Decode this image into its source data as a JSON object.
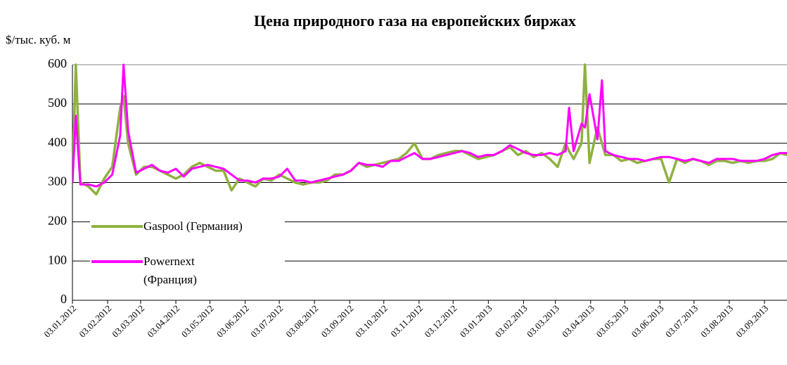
{
  "chart_data": {
    "type": "line",
    "title": "Цена природного газа на европейских биржах",
    "y_label": "$/тыс. куб. м",
    "x": [
      "03.01.2012",
      "06.01.2012",
      "10.01.2012",
      "17.01.2012",
      "24.01.2012",
      "31.01.2012",
      "07.02.2012",
      "14.02.2012",
      "17.02.2012",
      "21.02.2012",
      "28.02.2012",
      "06.03.2012",
      "13.03.2012",
      "20.03.2012",
      "27.03.2012",
      "03.04.2012",
      "10.04.2012",
      "17.04.2012",
      "24.04.2012",
      "01.05.2012",
      "08.05.2012",
      "15.05.2012",
      "22.05.2012",
      "29.05.2012",
      "05.06.2012",
      "12.06.2012",
      "19.06.2012",
      "26.06.2012",
      "03.07.2012",
      "10.07.2012",
      "17.07.2012",
      "24.07.2012",
      "31.07.2012",
      "07.08.2012",
      "14.08.2012",
      "21.08.2012",
      "28.08.2012",
      "04.09.2012",
      "11.09.2012",
      "18.09.2012",
      "25.09.2012",
      "02.10.2012",
      "09.10.2012",
      "16.10.2012",
      "23.10.2012",
      "30.10.2012",
      "06.11.2012",
      "13.11.2012",
      "20.11.2012",
      "27.11.2012",
      "04.12.2012",
      "11.12.2012",
      "18.12.2012",
      "25.12.2012",
      "01.01.2013",
      "08.01.2013",
      "15.01.2013",
      "22.01.2013",
      "29.01.2013",
      "05.02.2013",
      "12.02.2013",
      "19.02.2013",
      "26.02.2013",
      "05.03.2013",
      "12.03.2013",
      "15.03.2013",
      "19.03.2013",
      "26.03.2013",
      "29.03.2013",
      "02.04.2013",
      "09.04.2013",
      "13.04.2013",
      "16.04.2013",
      "23.04.2013",
      "30.04.2013",
      "07.05.2013",
      "14.05.2013",
      "21.05.2013",
      "28.05.2013",
      "04.06.2013",
      "11.06.2013",
      "18.06.2013",
      "25.06.2013",
      "02.07.2013",
      "09.07.2013",
      "16.07.2013",
      "23.07.2013",
      "30.07.2013",
      "06.08.2013",
      "13.08.2013",
      "20.08.2013",
      "27.08.2013",
      "03.09.2013",
      "10.09.2013",
      "17.09.2013",
      "23.09.2013"
    ],
    "series": [
      {
        "name": "Gaspool (Германия)",
        "color": "#8fb140",
        "values": [
          305,
          600,
          300,
          290,
          270,
          310,
          340,
          490,
          520,
          400,
          320,
          340,
          340,
          330,
          320,
          310,
          320,
          340,
          350,
          340,
          330,
          330,
          280,
          310,
          300,
          290,
          310,
          305,
          320,
          310,
          300,
          295,
          300,
          300,
          305,
          320,
          320,
          330,
          350,
          340,
          345,
          350,
          355,
          360,
          375,
          400,
          360,
          360,
          370,
          375,
          380,
          380,
          370,
          360,
          365,
          370,
          380,
          390,
          370,
          380,
          365,
          375,
          360,
          340,
          400,
          380,
          360,
          400,
          600,
          350,
          440,
          400,
          370,
          370,
          355,
          360,
          350,
          355,
          360,
          360,
          300,
          360,
          350,
          360,
          355,
          345,
          355,
          355,
          350,
          355,
          350,
          355,
          355,
          360,
          375,
          370
        ]
      },
      {
        "name": "Powernext (Франция)",
        "color": "#ff00ff",
        "values": [
          300,
          470,
          295,
          295,
          290,
          300,
          320,
          420,
          600,
          430,
          325,
          335,
          345,
          330,
          325,
          335,
          315,
          335,
          340,
          345,
          340,
          335,
          320,
          305,
          305,
          300,
          310,
          310,
          315,
          335,
          305,
          305,
          300,
          305,
          310,
          315,
          320,
          330,
          350,
          345,
          345,
          340,
          355,
          355,
          365,
          375,
          360,
          360,
          365,
          370,
          375,
          380,
          375,
          365,
          370,
          370,
          380,
          395,
          385,
          375,
          370,
          370,
          375,
          370,
          380,
          490,
          380,
          450,
          440,
          525,
          410,
          560,
          380,
          370,
          365,
          360,
          360,
          355,
          360,
          365,
          365,
          360,
          355,
          360,
          355,
          350,
          360,
          360,
          360,
          355,
          355,
          355,
          360,
          370,
          375,
          375
        ]
      }
    ],
    "xlim": [
      "03.01.2012",
      "23.09.2013"
    ],
    "xticks": [
      "03.01.2012",
      "03.02.2012",
      "03.03.2012",
      "03.04.2012",
      "03.05.2012",
      "03.06.2012",
      "03.07.2012",
      "03.08.2012",
      "03.09.2012",
      "03.10.2012",
      "03.11.2012",
      "03.12.2012",
      "03.01.2013",
      "03.02.2013",
      "03.03.2013",
      "03.04.2013",
      "03.05.2013",
      "03.06.2013",
      "03.07.2013",
      "03.08.2013",
      "03.09.2013"
    ],
    "ylim": [
      0,
      600
    ],
    "yticks": [
      0,
      100,
      200,
      300,
      400,
      500,
      600
    ],
    "grid": true,
    "legend": "lower left"
  }
}
